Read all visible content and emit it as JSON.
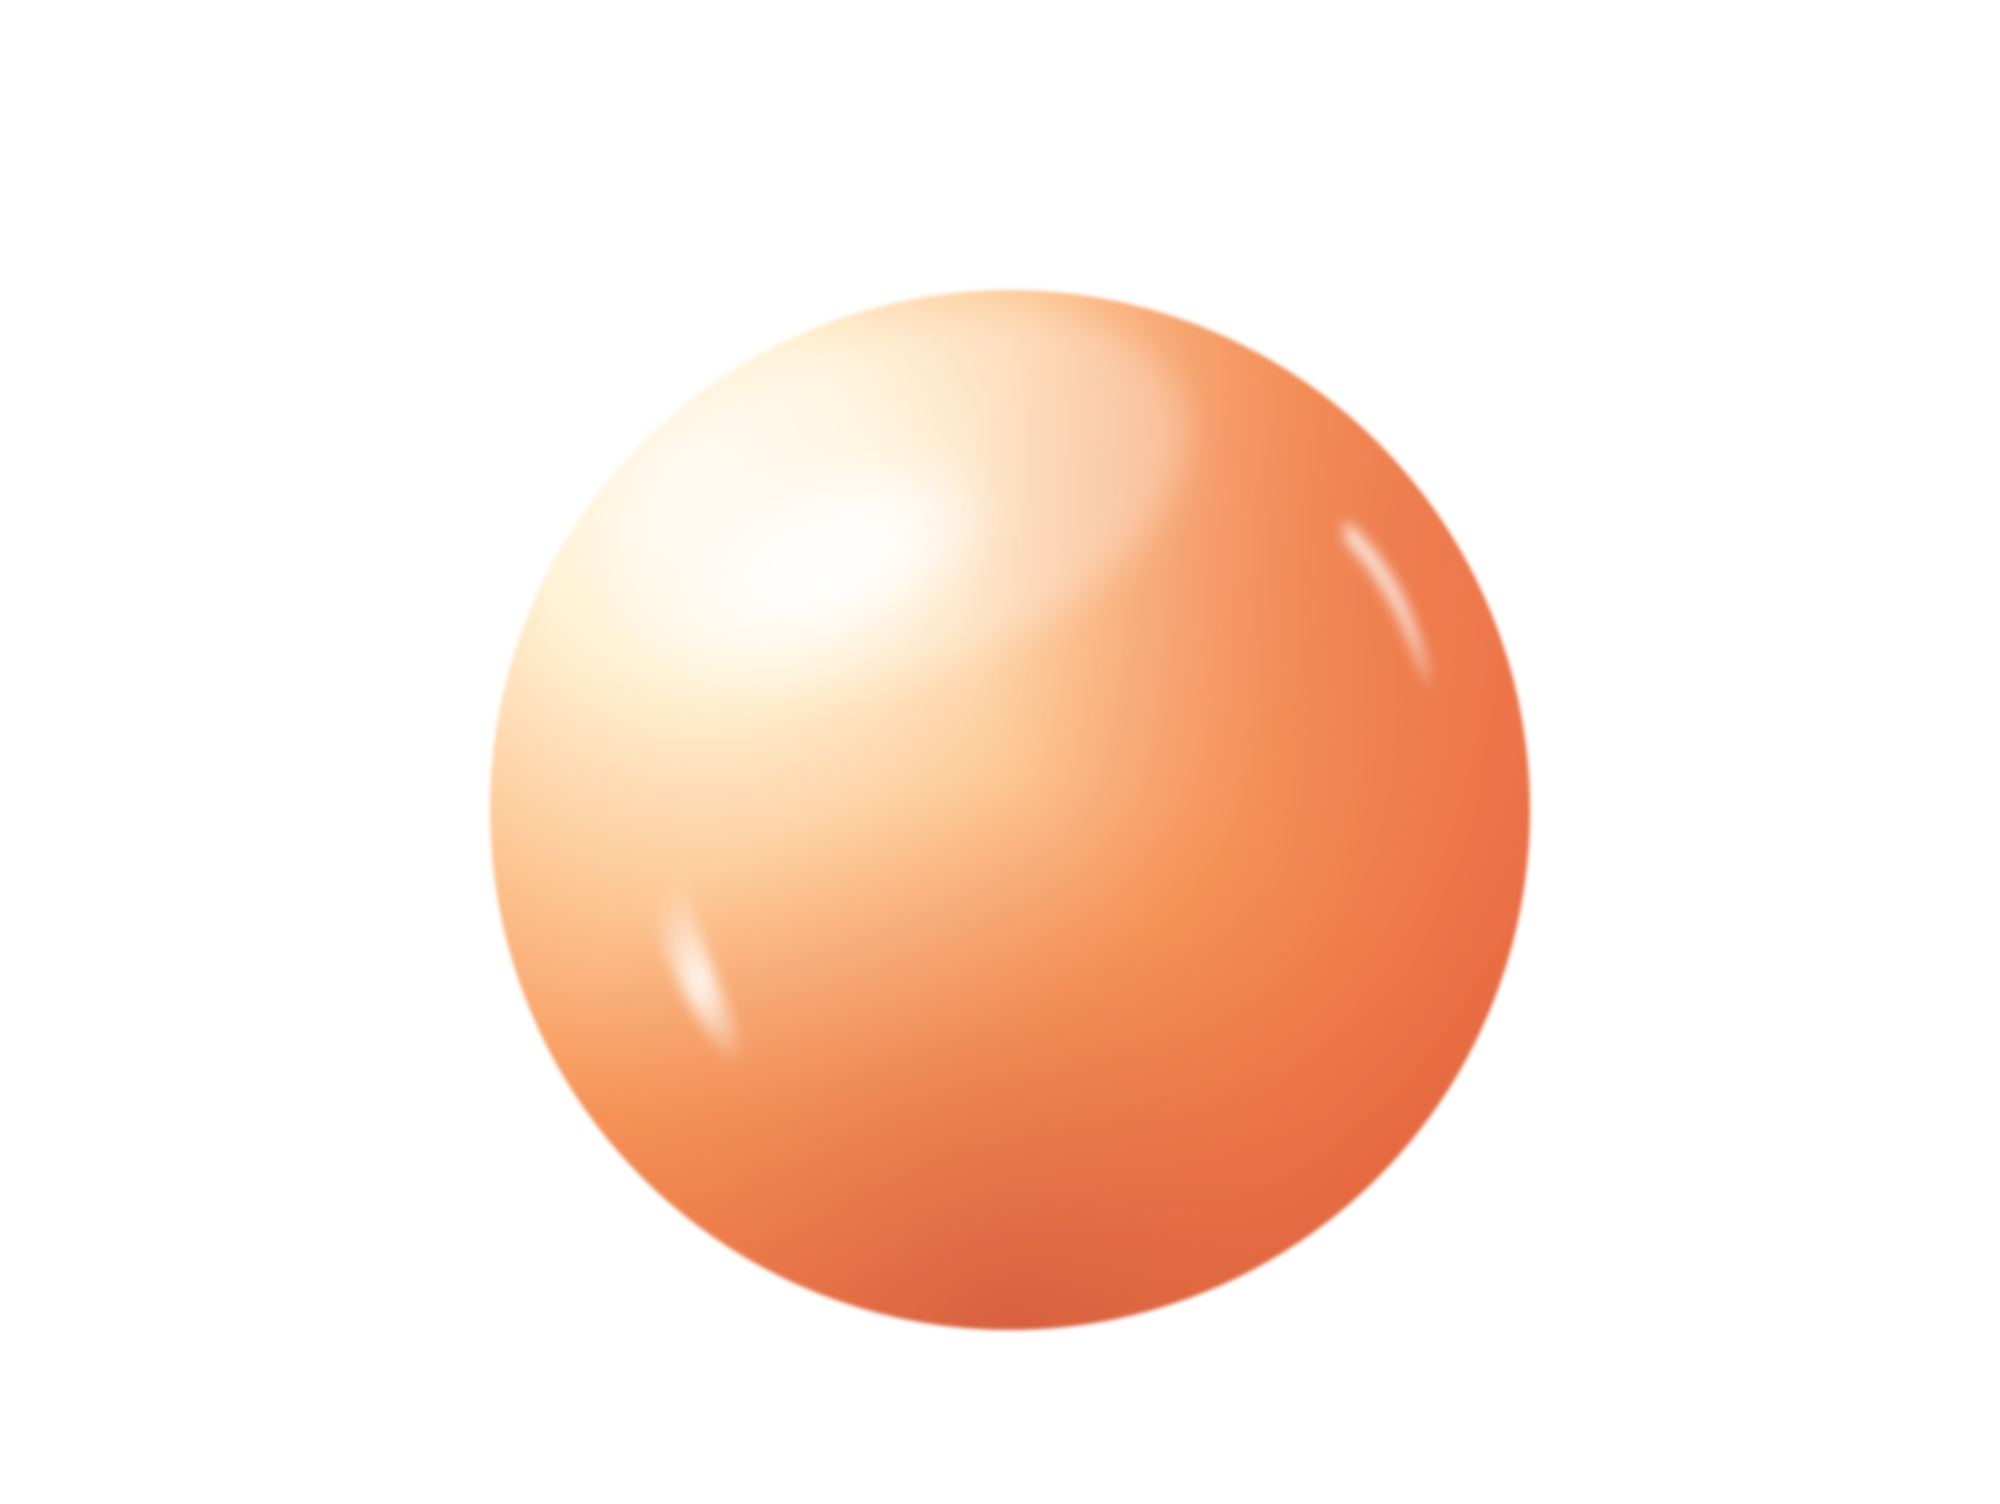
{
  "scene": {
    "background": "#ffffff",
    "subject": "orange-glossy-sphere-icon",
    "colors": {
      "highlight": "#fffdf4",
      "cream": "#fef3d6",
      "peach": "#fdc08a",
      "orange": "#f5894c",
      "deep_orange": "#ea6d3e",
      "shadow_red": "#d85a3c"
    }
  }
}
